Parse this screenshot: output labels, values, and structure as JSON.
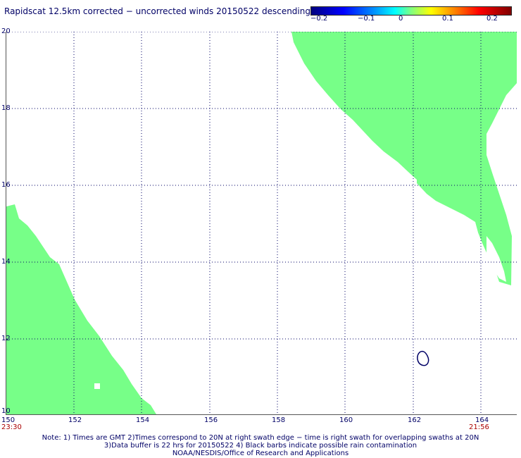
{
  "title": "Rapidscat 12.5km corrected − uncorrected winds 20150522 descending",
  "colorbar": {
    "labels": [
      "−0.2",
      "−0.1",
      "0",
      "0.1",
      "0.2"
    ]
  },
  "axes": {
    "x_ticks": [
      "150",
      "152",
      "154",
      "156",
      "158",
      "160",
      "162",
      "164"
    ],
    "y_ticks": [
      "10",
      "12",
      "14",
      "16",
      "18",
      "20"
    ]
  },
  "times": {
    "left": "23:30",
    "right": "21:56"
  },
  "notes": {
    "line1": "Note: 1) Times are GMT 2)Times correspond to 20N at right swath edge − time is right swath for overlapping swaths at 20N",
    "line2": "3)Data buffer is 22 hrs for 20150522 4) Black barbs indicate possible rain contamination",
    "line3": "NOAA/NESDIS/Office of Research and Applications"
  },
  "colors": {
    "swath": "#77ff88",
    "text": "#000066",
    "time_text": "#aa0000"
  }
}
